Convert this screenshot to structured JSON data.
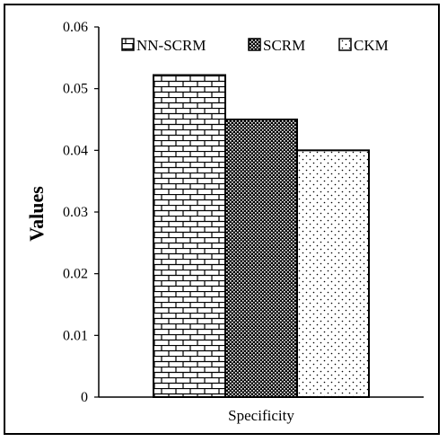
{
  "chart_data": {
    "type": "bar",
    "categories": [
      "Specificity"
    ],
    "series": [
      {
        "name": "NN-SCRM",
        "values": [
          0.0522
        ],
        "pattern": "brick"
      },
      {
        "name": "SCRM",
        "values": [
          0.045
        ],
        "pattern": "dense-dots"
      },
      {
        "name": "CKM",
        "values": [
          0.04
        ],
        "pattern": "sparse-dots"
      }
    ],
    "xlabel": "Specificity",
    "ylabel": "Values",
    "ylim": [
      0,
      0.06
    ],
    "yticks": [
      "0",
      "0.01",
      "0.02",
      "0.03",
      "0.04",
      "0.05",
      "0.06"
    ],
    "legend_position": "top",
    "grid": false,
    "colors": {
      "ink": "#000000",
      "background": "#ffffff"
    }
  }
}
